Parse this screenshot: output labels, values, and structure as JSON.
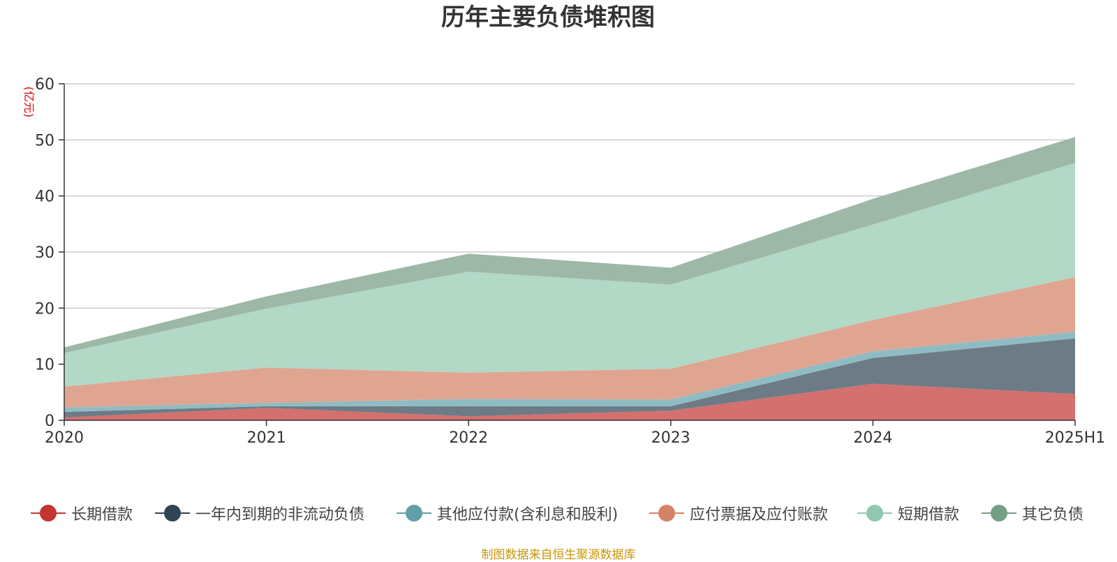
{
  "chart_data": {
    "type": "area",
    "stacked": true,
    "title": "历年主要负债堆积图",
    "ylabel": "(亿元)",
    "xlabel": "",
    "categories": [
      "2020",
      "2021",
      "2022",
      "2023",
      "2024",
      "2025H1"
    ],
    "ylim": [
      0,
      60
    ],
    "yticks": [
      0,
      10,
      20,
      30,
      40,
      50,
      60
    ],
    "grid": true,
    "legend_position": "bottom",
    "series": [
      {
        "name": "长期借款",
        "color": "#c23531",
        "fill": "#d4706d",
        "values": [
          0.5,
          2.2,
          0.7,
          1.7,
          6.5,
          4.7
        ]
      },
      {
        "name": "一年内到期的非流动负债",
        "color": "#2f4554",
        "fill": "#6d7b87",
        "values": [
          1.0,
          0.3,
          1.8,
          0.8,
          4.6,
          9.9
        ]
      },
      {
        "name": "其他应付款(含利息和股利)",
        "color": "#61a0a8",
        "fill": "#8fbcc2",
        "values": [
          0.8,
          0.6,
          1.3,
          1.2,
          1.2,
          1.2
        ]
      },
      {
        "name": "应付票据及应付账款",
        "color": "#d48265",
        "fill": "#e0a591",
        "values": [
          3.7,
          6.3,
          4.7,
          5.5,
          5.6,
          9.7
        ]
      },
      {
        "name": "短期借款",
        "color": "#91c7ae",
        "fill": "#b2d8c6",
        "values": [
          6.0,
          10.5,
          18.0,
          15.0,
          17.0,
          20.4
        ]
      },
      {
        "name": "其它负债",
        "color": "#749f83",
        "fill": "#9db8a6",
        "values": [
          1.0,
          2.2,
          3.2,
          3.0,
          4.6,
          4.6
        ]
      }
    ]
  },
  "source_note": "制图数据来自恒生聚源数据库"
}
